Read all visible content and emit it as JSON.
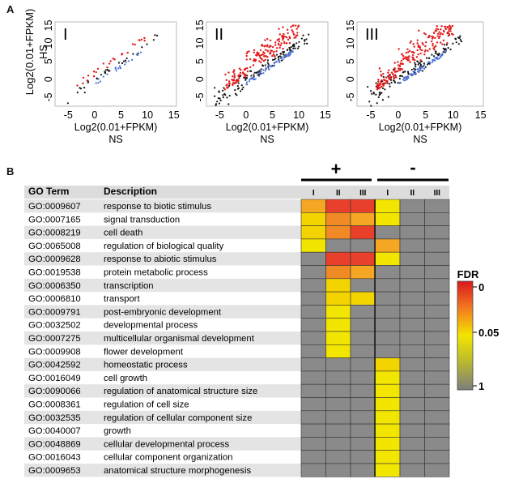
{
  "panel_labels": {
    "a": "A",
    "b": "B"
  },
  "scatter": {
    "ylabel": "Log2(0.01+FPKM)",
    "ylabel2": "HS",
    "xlabel": "Log2(0.01+FPKM)",
    "xlabel2": "NS",
    "xticks": [
      "-5",
      "0",
      "5",
      "10",
      "15"
    ],
    "yticks": [
      "-5",
      "0",
      "5",
      "10",
      "15"
    ],
    "panels": [
      {
        "roman": "I"
      },
      {
        "roman": "II"
      },
      {
        "roman": "III"
      }
    ],
    "colors": {
      "up": "#e31a1c",
      "down": "#4a6fd8",
      "ns": "#111111"
    }
  },
  "heatmap": {
    "headers": {
      "go": "GO Term",
      "desc": "Description"
    },
    "group_plus": "+",
    "group_minus": "-",
    "columns": [
      "I",
      "II",
      "III",
      "I",
      "II",
      "III"
    ],
    "legend": {
      "title": "FDR",
      "ticks": [
        "0",
        "0.05",
        "1"
      ]
    },
    "colors": {
      "NS": "#8a8a8a",
      "Y": "#f2e500",
      "Y2": "#f3d400",
      "O": "#f5a623",
      "O2": "#f08a24",
      "R": "#e8402a"
    },
    "rows": [
      {
        "go": "GO:0009607",
        "desc": "response to biotic stimulus",
        "cells": [
          "O",
          "R",
          "R",
          "Y",
          "NS",
          "NS"
        ]
      },
      {
        "go": "GO:0007165",
        "desc": "signal transduction",
        "cells": [
          "Y2",
          "O2",
          "O",
          "Y",
          "NS",
          "NS"
        ]
      },
      {
        "go": "GO:0008219",
        "desc": "cell death",
        "cells": [
          "Y2",
          "O2",
          "R",
          "NS",
          "NS",
          "NS"
        ]
      },
      {
        "go": "GO:0065008",
        "desc": "regulation of biological quality",
        "cells": [
          "Y",
          "NS",
          "NS",
          "O",
          "NS",
          "NS"
        ]
      },
      {
        "go": "GO:0009628",
        "desc": "response to abiotic stimulus",
        "cells": [
          "NS",
          "R",
          "R",
          "Y",
          "NS",
          "NS"
        ]
      },
      {
        "go": "GO:0019538",
        "desc": "protein metabolic process",
        "cells": [
          "NS",
          "O2",
          "O",
          "NS",
          "NS",
          "NS"
        ]
      },
      {
        "go": "GO:0006350",
        "desc": "transcription",
        "cells": [
          "NS",
          "Y2",
          "NS",
          "NS",
          "NS",
          "NS"
        ]
      },
      {
        "go": "GO:0006810",
        "desc": "transport",
        "cells": [
          "NS",
          "Y2",
          "Y2",
          "NS",
          "NS",
          "NS"
        ]
      },
      {
        "go": "GO:0009791",
        "desc": "post-embryonic development",
        "cells": [
          "NS",
          "Y",
          "NS",
          "NS",
          "NS",
          "NS"
        ]
      },
      {
        "go": "GO:0032502",
        "desc": "developmental process",
        "cells": [
          "NS",
          "Y",
          "NS",
          "NS",
          "NS",
          "NS"
        ]
      },
      {
        "go": "GO:0007275",
        "desc": "multicellular organismal development",
        "cells": [
          "NS",
          "Y",
          "NS",
          "NS",
          "NS",
          "NS"
        ]
      },
      {
        "go": "GO:0009908",
        "desc": "flower development",
        "cells": [
          "NS",
          "Y",
          "NS",
          "NS",
          "NS",
          "NS"
        ]
      },
      {
        "go": "GO:0042592",
        "desc": "homeostatic process",
        "cells": [
          "NS",
          "NS",
          "NS",
          "Y2",
          "NS",
          "NS"
        ]
      },
      {
        "go": "GO:0016049",
        "desc": "cell growth",
        "cells": [
          "NS",
          "NS",
          "NS",
          "Y",
          "NS",
          "NS"
        ]
      },
      {
        "go": "GO:0090066",
        "desc": "regulation of anatomical structure size",
        "cells": [
          "NS",
          "NS",
          "NS",
          "Y",
          "NS",
          "NS"
        ]
      },
      {
        "go": "GO:0008361",
        "desc": "regulation of cell size",
        "cells": [
          "NS",
          "NS",
          "NS",
          "Y",
          "NS",
          "NS"
        ]
      },
      {
        "go": "GO:0032535",
        "desc": "regulation of cellular component size",
        "cells": [
          "NS",
          "NS",
          "NS",
          "Y",
          "NS",
          "NS"
        ]
      },
      {
        "go": "GO:0040007",
        "desc": "growth",
        "cells": [
          "NS",
          "NS",
          "NS",
          "Y",
          "NS",
          "NS"
        ]
      },
      {
        "go": "GO:0048869",
        "desc": "cellular developmental process",
        "cells": [
          "NS",
          "NS",
          "NS",
          "Y",
          "NS",
          "NS"
        ]
      },
      {
        "go": "GO:0016043",
        "desc": "cellular component organization",
        "cells": [
          "NS",
          "NS",
          "NS",
          "Y",
          "NS",
          "NS"
        ]
      },
      {
        "go": "GO:0009653",
        "desc": "anatomical structure morphogenesis",
        "cells": [
          "NS",
          "NS",
          "NS",
          "Y",
          "NS",
          "NS"
        ]
      }
    ]
  }
}
